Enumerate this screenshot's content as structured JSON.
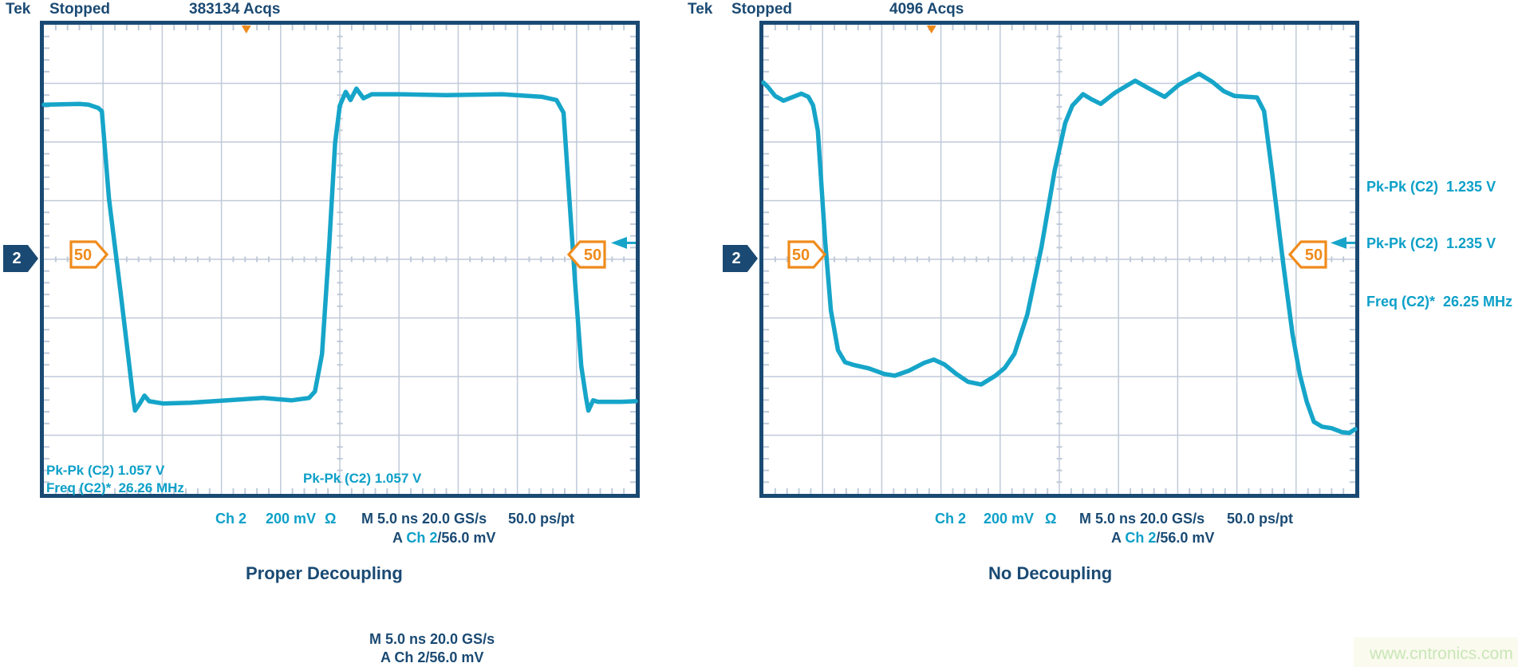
{
  "palette": {
    "navy": "#1a4a73",
    "cyan_text": "#0da0c8",
    "trace": "#16a5c9",
    "orange": "#ef8b1b",
    "grid": "#bfcad8",
    "watermark_green": "#c9e6b8"
  },
  "scopes": [
    {
      "header": {
        "brand": "Tek",
        "status": "Stopped",
        "acqs": "383134 Acqs"
      },
      "channel_badge": "2",
      "level_markers": {
        "left": "50",
        "right": "50"
      },
      "measurements": {
        "line1": "Pk-Pk (C2) 1.057 V",
        "line2": "Freq (C2)*  26.26 MHz",
        "center": "Pk-Pk (C2) 1.057 V"
      },
      "scale": {
        "channel": "Ch 2",
        "volts": "200 mV",
        "impedance": "Ω",
        "timebase": "M 5.0 ns 20.0 GS/s",
        "resolution": "50.0 ps/pt",
        "trigger_prefix": "A ",
        "trigger_channel": "Ch 2",
        "trigger_level": "/56.0 mV"
      },
      "caption": "Proper Decoupling"
    },
    {
      "header": {
        "brand": "Tek",
        "status": "Stopped",
        "acqs": "4096 Acqs"
      },
      "channel_badge": "2",
      "level_markers": {
        "left": "50",
        "right": "50"
      },
      "annotations": [
        {
          "text": "Pk-Pk (C2)  1.235 V"
        },
        {
          "text": "Pk-Pk (C2)  1.235 V"
        },
        {
          "text": "Freq (C2)*  26.25 MHz"
        }
      ],
      "scale": {
        "channel": "Ch 2",
        "volts": "200 mV",
        "impedance": "Ω",
        "timebase": "M 5.0 ns 20.0 GS/s",
        "resolution": "50.0 ps/pt",
        "trigger_prefix": "A ",
        "trigger_channel": "Ch 2",
        "trigger_level": "/56.0 mV"
      },
      "caption": "No Decoupling"
    }
  ],
  "footer": {
    "timebase": "M 5.0 ns 20.0 GS/s",
    "trigger": "A Ch 2/56.0 mV"
  },
  "watermark": "www.cntronics.com",
  "chart_data": [
    {
      "type": "line",
      "title": "Proper Decoupling",
      "x_unit": "ns",
      "y_unit": "mV",
      "x_range": [
        0,
        50
      ],
      "timebase": "5.0 ns/div",
      "vertical_scale": "200 mV/div",
      "sample_rate": "20.0 GS/s",
      "resolution": "50.0 ps/pt",
      "trigger_level_mV": 56,
      "trigger_position_frac": 0.342,
      "measurements": {
        "pk_pk_V": 1.057,
        "freq_MHz": 26.26
      },
      "grid": {
        "cols": 10,
        "rows": 8,
        "minor_per_div": 5
      },
      "series": [
        {
          "name": "Ch 2",
          "points": [
            [
              0,
              527
            ],
            [
              3,
              530
            ],
            [
              3.8,
              527
            ],
            [
              4.6,
              516
            ],
            [
              4.9,
              505
            ],
            [
              5.5,
              207
            ],
            [
              6.5,
              -120
            ],
            [
              7.1,
              -323
            ],
            [
              7.5,
              -459
            ],
            [
              7.7,
              -516
            ],
            [
              8.1,
              -492
            ],
            [
              8.5,
              -465
            ],
            [
              8.9,
              -484
            ],
            [
              10.1,
              -492
            ],
            [
              12.4,
              -489
            ],
            [
              15.5,
              -481
            ],
            [
              18.5,
              -473
            ],
            [
              20.9,
              -481
            ],
            [
              22.4,
              -473
            ],
            [
              22.9,
              -451
            ],
            [
              23.5,
              -323
            ],
            [
              24.1,
              43
            ],
            [
              24.6,
              397
            ],
            [
              25,
              524
            ],
            [
              25.5,
              571
            ],
            [
              25.9,
              543
            ],
            [
              26.4,
              582
            ],
            [
              27,
              549
            ],
            [
              27.7,
              563
            ],
            [
              29.9,
              563
            ],
            [
              34,
              560
            ],
            [
              38.7,
              563
            ],
            [
              42.1,
              554
            ],
            [
              43.3,
              543
            ],
            [
              43.9,
              500
            ],
            [
              44.3,
              261
            ],
            [
              44.9,
              -92
            ],
            [
              45.4,
              -364
            ],
            [
              45.8,
              -473
            ],
            [
              46,
              -516
            ],
            [
              46.4,
              -481
            ],
            [
              46.8,
              -486
            ],
            [
              48.8,
              -486
            ],
            [
              50,
              -484
            ]
          ]
        }
      ]
    },
    {
      "type": "line",
      "title": "No Decoupling",
      "x_unit": "ns",
      "y_unit": "mV",
      "x_range": [
        0,
        50
      ],
      "timebase": "5.0 ns/div",
      "vertical_scale": "200 mV/div",
      "sample_rate": "20.0 GS/s",
      "resolution": "50.0 ps/pt",
      "trigger_level_mV": 56,
      "trigger_position_frac": 0.284,
      "measurements": {
        "pk_pk_V": 1.235,
        "freq_MHz": 26.25
      },
      "grid": {
        "cols": 10,
        "rows": 8,
        "minor_per_div": 5
      },
      "series": [
        {
          "name": "Ch 2",
          "points": [
            [
              0,
              603
            ],
            [
              0.4,
              587
            ],
            [
              1,
              557
            ],
            [
              1.7,
              541
            ],
            [
              2.4,
              552
            ],
            [
              3.2,
              565
            ],
            [
              3.8,
              554
            ],
            [
              4.2,
              525
            ],
            [
              4.6,
              438
            ],
            [
              5.2,
              71
            ],
            [
              5.7,
              -174
            ],
            [
              6.3,
              -310
            ],
            [
              6.9,
              -351
            ],
            [
              7.7,
              -361
            ],
            [
              8.9,
              -372
            ],
            [
              10.2,
              -391
            ],
            [
              11.1,
              -397
            ],
            [
              12.3,
              -380
            ],
            [
              13.6,
              -353
            ],
            [
              14.4,
              -342
            ],
            [
              15.3,
              -359
            ],
            [
              16.3,
              -391
            ],
            [
              17.3,
              -418
            ],
            [
              18.4,
              -427
            ],
            [
              19.6,
              -397
            ],
            [
              20.4,
              -370
            ],
            [
              21.2,
              -323
            ],
            [
              22.3,
              -188
            ],
            [
              23.5,
              43
            ],
            [
              24.6,
              302
            ],
            [
              25.5,
              465
            ],
            [
              26.1,
              524
            ],
            [
              27,
              563
            ],
            [
              27.7,
              546
            ],
            [
              28.5,
              530
            ],
            [
              29.7,
              568
            ],
            [
              31.4,
              609
            ],
            [
              32.6,
              582
            ],
            [
              33.9,
              554
            ],
            [
              35.1,
              595
            ],
            [
              36.8,
              633
            ],
            [
              37.9,
              606
            ],
            [
              38.9,
              573
            ],
            [
              39.8,
              557
            ],
            [
              41.7,
              552
            ],
            [
              42.3,
              505
            ],
            [
              43,
              288
            ],
            [
              43.9,
              -11
            ],
            [
              44.7,
              -255
            ],
            [
              45.3,
              -391
            ],
            [
              45.9,
              -486
            ],
            [
              46.5,
              -554
            ],
            [
              47.2,
              -571
            ],
            [
              48,
              -576
            ],
            [
              48.9,
              -590
            ],
            [
              49.5,
              -592
            ],
            [
              50,
              -579
            ]
          ]
        }
      ]
    }
  ]
}
